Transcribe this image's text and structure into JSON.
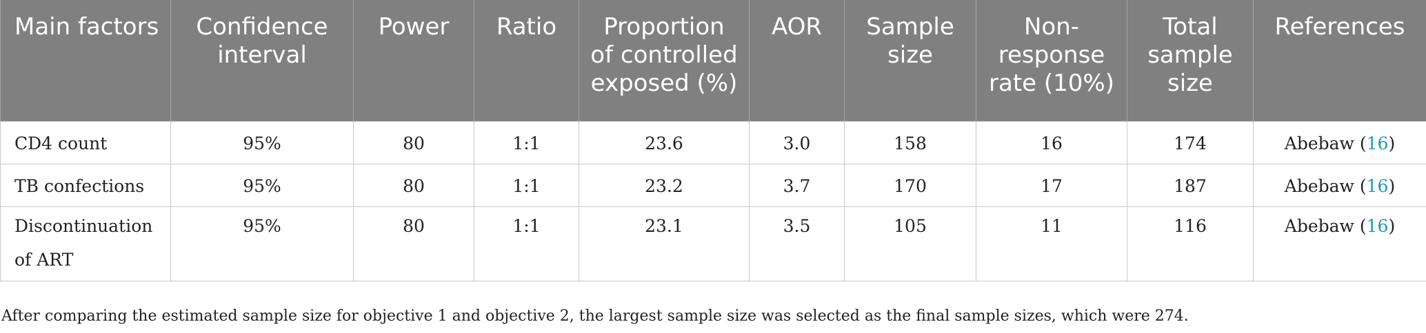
{
  "table": {
    "headers": [
      "Main factors",
      "Confidence interval",
      "Power",
      "Ratio",
      "Proportion of controlled exposed (%)",
      "AOR",
      "Sample size",
      "Non-response rate (10%)",
      "Total sample size",
      "References"
    ],
    "rows": [
      {
        "factor": "CD4 count",
        "confidence_interval": "95%",
        "power": "80",
        "ratio": "1:1",
        "proportion": "23.6",
        "aor": "3.0",
        "sample_size": "158",
        "non_response": "16",
        "total": "174",
        "ref_author": "Abebaw",
        "ref_num": "16"
      },
      {
        "factor": "TB confections",
        "confidence_interval": "95%",
        "power": "80",
        "ratio": "1:1",
        "proportion": "23.2",
        "aor": "3.7",
        "sample_size": "170",
        "non_response": "17",
        "total": "187",
        "ref_author": "Abebaw",
        "ref_num": "16"
      },
      {
        "factor": "Discontinuation of ART",
        "confidence_interval": "95%",
        "power": "80",
        "ratio": "1:1",
        "proportion": "23.1",
        "aor": "3.5",
        "sample_size": "105",
        "non_response": "11",
        "total": "116",
        "ref_author": "Abebaw",
        "ref_num": "16"
      }
    ]
  },
  "footnote": "After comparing the estimated sample size for objective 1 and objective 2, the largest sample size was selected as the final sample sizes, which were 274.",
  "colors": {
    "header_bg": "#808080",
    "header_text": "#ffffff",
    "reference_link": "#1a9bbd",
    "grid": "#c8c8c8"
  }
}
